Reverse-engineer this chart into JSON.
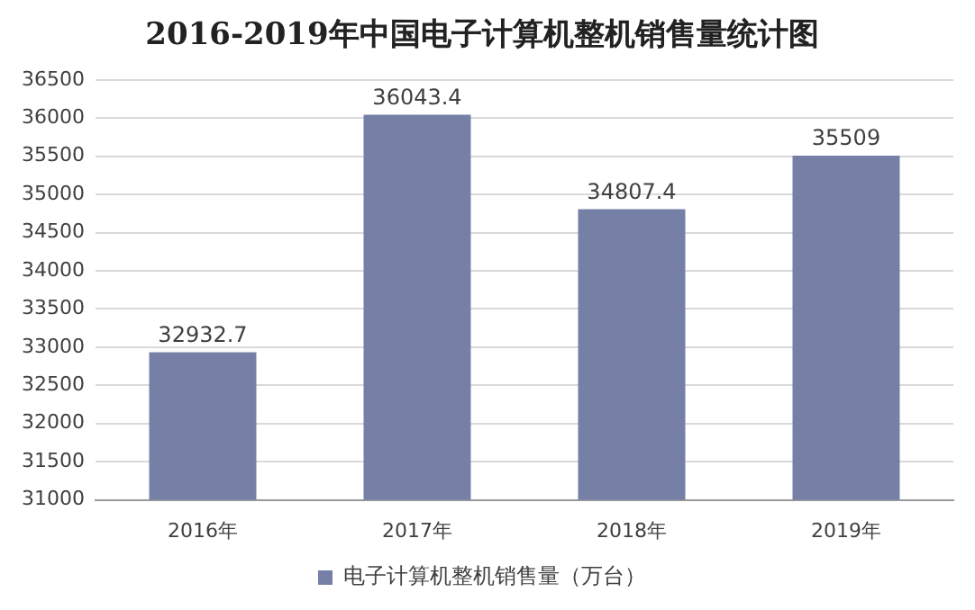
{
  "chart_data": {
    "type": "bar",
    "title": "2016-2019年中国电子计算机整机销售量统计图",
    "categories": [
      "2016年",
      "2017年",
      "2018年",
      "2019年"
    ],
    "series": [
      {
        "name": "电子计算机整机销售量（万台）",
        "color": "#7680a6",
        "values": [
          32932.7,
          36043.4,
          34807.4,
          35509
        ]
      }
    ],
    "ylim": [
      31000,
      36500
    ],
    "yticks": [
      31000,
      31500,
      32000,
      32500,
      33000,
      33500,
      34000,
      34500,
      35000,
      35500,
      36000,
      36500
    ],
    "grid": "y",
    "legend": "bottom",
    "data_labels": true
  }
}
